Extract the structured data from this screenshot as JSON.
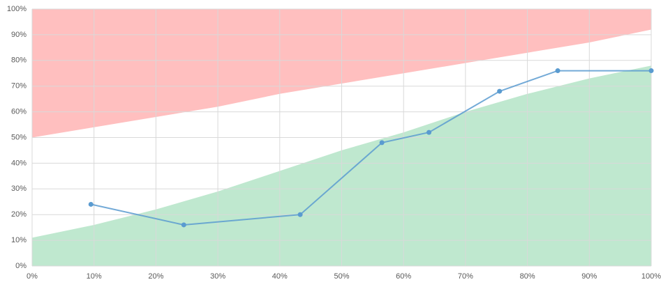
{
  "chart_data": {
    "type": "line",
    "x": [
      9.5,
      24.5,
      43.3,
      56.5,
      64.1,
      75.5,
      84.9,
      100
    ],
    "series": [
      {
        "color": "#5a9bd0",
        "values": [
          24,
          16,
          20,
          48,
          52,
          68,
          76,
          76
        ]
      }
    ],
    "areas": [
      {
        "color": "#ffbfbf",
        "x": [
          0,
          10,
          20,
          30,
          40,
          50,
          60,
          70,
          80,
          90,
          100
        ],
        "low": [
          50,
          54,
          58,
          62,
          67,
          71,
          75,
          79,
          83,
          87,
          92
        ],
        "high": [
          100,
          100,
          100,
          100,
          100,
          100,
          100,
          100,
          100,
          100,
          100
        ]
      },
      {
        "color": "#bfe8cf",
        "x": [
          0,
          10,
          20,
          30,
          40,
          50,
          60,
          70,
          80,
          90,
          100
        ],
        "low": [
          0,
          0,
          0,
          0,
          0,
          0,
          0,
          0,
          0,
          0,
          0
        ],
        "high": [
          11,
          16,
          22,
          29,
          37,
          45,
          52,
          60,
          67,
          73,
          78
        ]
      }
    ],
    "xlim": [
      0,
      100
    ],
    "ylim": [
      0,
      100
    ],
    "xticks": [
      {
        "value": 0,
        "label": "0%"
      },
      {
        "value": 10,
        "label": "10%"
      },
      {
        "value": 20,
        "label": "20%"
      },
      {
        "value": 30,
        "label": "30%"
      },
      {
        "value": 40,
        "label": "40%"
      },
      {
        "value": 50,
        "label": "50%"
      },
      {
        "value": 60,
        "label": "60%"
      },
      {
        "value": 70,
        "label": "70%"
      },
      {
        "value": 80,
        "label": "80%"
      },
      {
        "value": 90,
        "label": "90%"
      },
      {
        "value": 100,
        "label": "100%"
      }
    ],
    "yticks": [
      {
        "value": 0,
        "label": "0%"
      },
      {
        "value": 10,
        "label": "10%"
      },
      {
        "value": 20,
        "label": "20%"
      },
      {
        "value": 30,
        "label": "30%"
      },
      {
        "value": 40,
        "label": "40%"
      },
      {
        "value": 50,
        "label": "50%"
      },
      {
        "value": 60,
        "label": "60%"
      },
      {
        "value": 70,
        "label": "70%"
      },
      {
        "value": 80,
        "label": "80%"
      },
      {
        "value": 90,
        "label": "90%"
      },
      {
        "value": 100,
        "label": "100%"
      }
    ],
    "grid": true
  }
}
